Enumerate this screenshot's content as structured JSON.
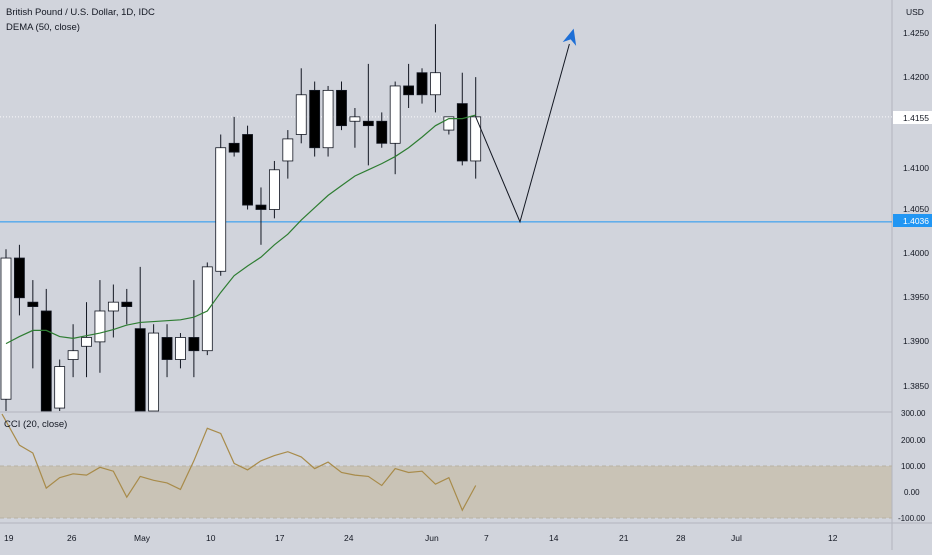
{
  "header": {
    "symbol_line": "British Pound / U.S. Dollar, 1D, IDC",
    "indicator_line": "DEMA (50, close)"
  },
  "cci_panel": {
    "label": "CCI (20, close)"
  },
  "price_scale": {
    "currency": "USD",
    "ticks": [
      "1.4250",
      "1.4200",
      "1.4155",
      "1.4100",
      "1.4050",
      "1.4036",
      "1.4000",
      "1.3950",
      "1.3900",
      "1.3850"
    ]
  },
  "cci_scale": {
    "ticks": [
      "300.00",
      "200.00",
      "100.00",
      "0.00",
      "-100.00"
    ]
  },
  "time_axis": {
    "ticks": [
      "19",
      "26",
      "May",
      "10",
      "17",
      "24",
      "Jun",
      "7",
      "14",
      "21",
      "28",
      "Jul",
      "12"
    ]
  },
  "colors": {
    "background": "#d1d4dc",
    "up_candle": "#ffffff",
    "down_candle": "#000000",
    "wick": "#131722",
    "dema_line": "#2e7d32",
    "cci_line": "#a88b4a",
    "cci_band": "#c9c3b6",
    "horizontal_level": "#2196f3",
    "projection_line": "#131722",
    "projection_arrow": "#1e6fd6"
  },
  "chart_data": [
    {
      "type": "candlestick",
      "title": "British Pound / U.S. Dollar, 1D, IDC",
      "ylabel": "USD",
      "ylim": [
        1.383,
        1.4285
      ],
      "x_ticks": [
        "19",
        "26",
        "May",
        "10",
        "17",
        "24",
        "Jun",
        "7",
        "14",
        "21",
        "28",
        "Jul",
        "12"
      ],
      "candles": [
        {
          "o": 1.3835,
          "h": 1.4005,
          "l": 1.3815,
          "c": 1.3995
        },
        {
          "o": 1.3995,
          "h": 1.401,
          "l": 1.393,
          "c": 1.395
        },
        {
          "o": 1.3945,
          "h": 1.397,
          "l": 1.387,
          "c": 1.394
        },
        {
          "o": 1.3935,
          "h": 1.396,
          "l": 1.381,
          "c": 1.382
        },
        {
          "o": 1.3825,
          "h": 1.388,
          "l": 1.3815,
          "c": 1.3872
        },
        {
          "o": 1.388,
          "h": 1.392,
          "l": 1.386,
          "c": 1.389
        },
        {
          "o": 1.3895,
          "h": 1.3945,
          "l": 1.386,
          "c": 1.3905
        },
        {
          "o": 1.39,
          "h": 1.397,
          "l": 1.3865,
          "c": 1.3935
        },
        {
          "o": 1.3935,
          "h": 1.3965,
          "l": 1.3905,
          "c": 1.3945
        },
        {
          "o": 1.3945,
          "h": 1.396,
          "l": 1.392,
          "c": 1.394
        },
        {
          "o": 1.3915,
          "h": 1.3985,
          "l": 1.38,
          "c": 1.3815
        },
        {
          "o": 1.3815,
          "h": 1.392,
          "l": 1.381,
          "c": 1.391
        },
        {
          "o": 1.3905,
          "h": 1.392,
          "l": 1.386,
          "c": 1.388
        },
        {
          "o": 1.388,
          "h": 1.391,
          "l": 1.387,
          "c": 1.3905
        },
        {
          "o": 1.3905,
          "h": 1.397,
          "l": 1.386,
          "c": 1.389
        },
        {
          "o": 1.389,
          "h": 1.399,
          "l": 1.3885,
          "c": 1.3985
        },
        {
          "o": 1.398,
          "h": 1.4135,
          "l": 1.3975,
          "c": 1.412
        },
        {
          "o": 1.4125,
          "h": 1.4155,
          "l": 1.411,
          "c": 1.4115
        },
        {
          "o": 1.4135,
          "h": 1.4145,
          "l": 1.405,
          "c": 1.4055
        },
        {
          "o": 1.4055,
          "h": 1.4075,
          "l": 1.401,
          "c": 1.405
        },
        {
          "o": 1.405,
          "h": 1.4105,
          "l": 1.404,
          "c": 1.4095
        },
        {
          "o": 1.4105,
          "h": 1.414,
          "l": 1.4085,
          "c": 1.413
        },
        {
          "o": 1.4135,
          "h": 1.421,
          "l": 1.4125,
          "c": 1.418
        },
        {
          "o": 1.4185,
          "h": 1.4195,
          "l": 1.411,
          "c": 1.412
        },
        {
          "o": 1.412,
          "h": 1.419,
          "l": 1.411,
          "c": 1.4185
        },
        {
          "o": 1.4185,
          "h": 1.4195,
          "l": 1.414,
          "c": 1.4145
        },
        {
          "o": 1.415,
          "h": 1.4165,
          "l": 1.412,
          "c": 1.4155
        },
        {
          "o": 1.415,
          "h": 1.4215,
          "l": 1.41,
          "c": 1.4145
        },
        {
          "o": 1.415,
          "h": 1.416,
          "l": 1.412,
          "c": 1.4125
        },
        {
          "o": 1.4125,
          "h": 1.4195,
          "l": 1.409,
          "c": 1.419
        },
        {
          "o": 1.419,
          "h": 1.4215,
          "l": 1.4165,
          "c": 1.418
        },
        {
          "o": 1.4205,
          "h": 1.421,
          "l": 1.417,
          "c": 1.418
        },
        {
          "o": 1.418,
          "h": 1.426,
          "l": 1.416,
          "c": 1.4205
        },
        {
          "o": 1.414,
          "h": 1.4155,
          "l": 1.4135,
          "c": 1.4155
        },
        {
          "o": 1.417,
          "h": 1.4205,
          "l": 1.41,
          "c": 1.4105
        },
        {
          "o": 1.4105,
          "h": 1.42,
          "l": 1.4085,
          "c": 1.4155
        }
      ],
      "dema": [
        1.3898,
        1.3906,
        1.3913,
        1.3913,
        1.3906,
        1.3904,
        1.3907,
        1.391,
        1.3914,
        1.3919,
        1.3922,
        1.3923,
        1.3924,
        1.3925,
        1.3928,
        1.3935,
        1.3956,
        1.3975,
        1.3986,
        1.3996,
        1.401,
        1.4022,
        1.4038,
        1.4052,
        1.4066,
        1.4077,
        1.4088,
        1.4095,
        1.4102,
        1.411,
        1.412,
        1.4132,
        1.4145,
        1.4153,
        1.4153,
        1.4157
      ],
      "horizontal_level": 1.4036,
      "current_price_line": 1.4155,
      "projection": [
        {
          "bar": 35,
          "price": 1.4155
        },
        {
          "bar": 38.3,
          "price": 1.4036
        },
        {
          "bar": 42.3,
          "price": 1.4255
        }
      ]
    },
    {
      "type": "line",
      "title": "CCI (20, close)",
      "ylim": [
        -130,
        330
      ],
      "band": [
        -100,
        100
      ],
      "x": [
        -0.3,
        1,
        2,
        3,
        4,
        5,
        6,
        7,
        8,
        9,
        10,
        11,
        12,
        13,
        14,
        15,
        16,
        17,
        18,
        19,
        20,
        21,
        22,
        23,
        24,
        25,
        26,
        27,
        28,
        29,
        30,
        31,
        32,
        33,
        34,
        35
      ],
      "values": [
        300,
        180,
        150,
        15,
        55,
        70,
        65,
        95,
        80,
        -20,
        60,
        45,
        35,
        10,
        120,
        245,
        225,
        110,
        85,
        120,
        140,
        155,
        135,
        90,
        115,
        75,
        65,
        60,
        25,
        90,
        75,
        80,
        30,
        55,
        -70,
        25
      ]
    }
  ]
}
